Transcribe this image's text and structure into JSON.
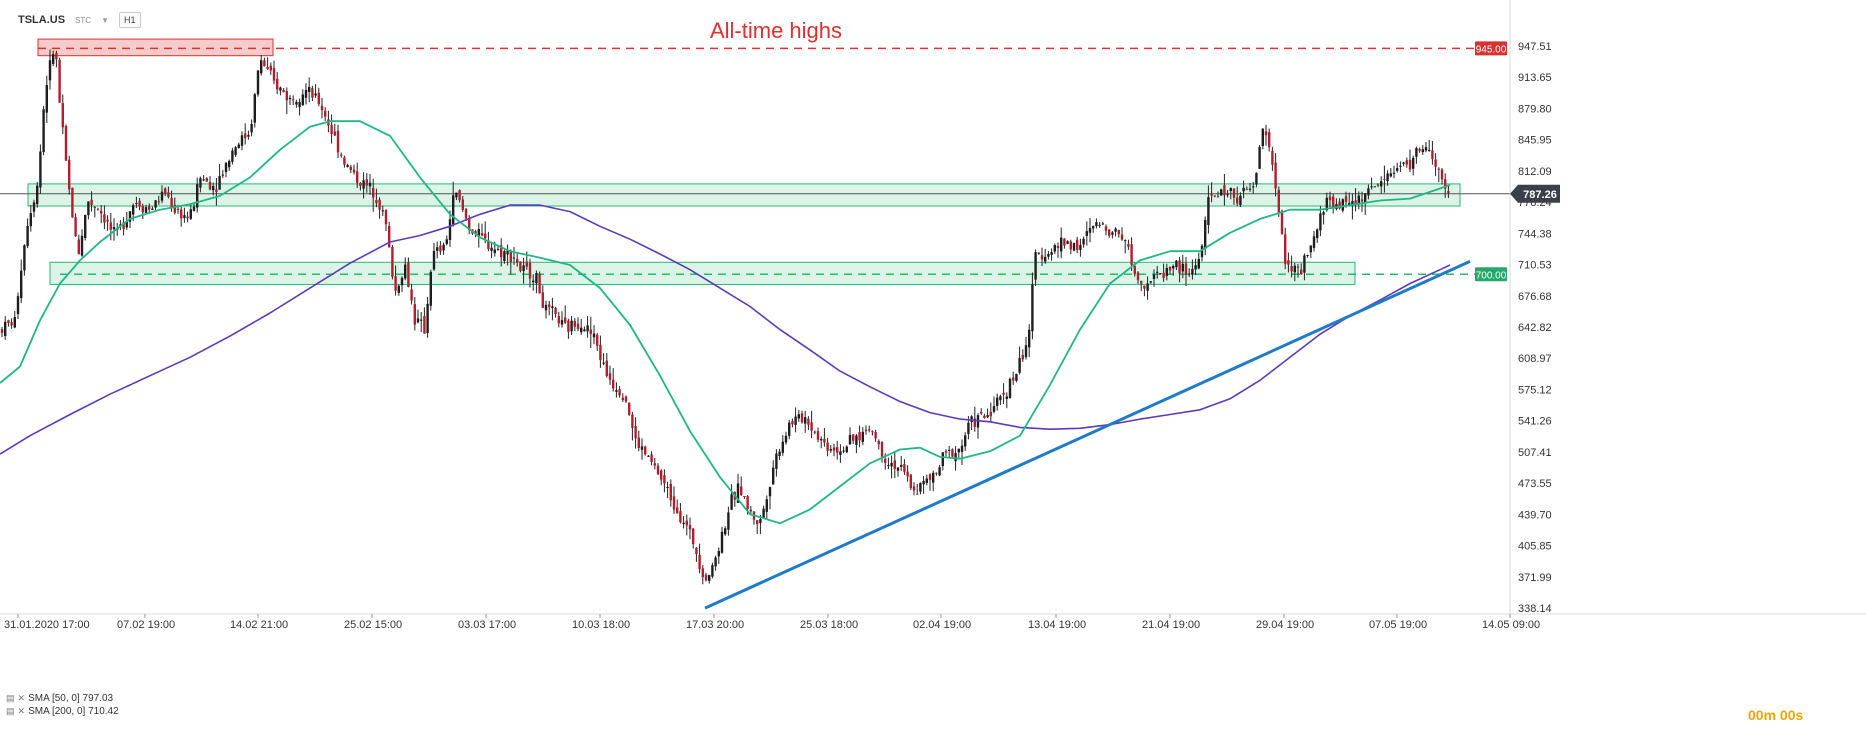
{
  "header": {
    "symbol": "TSLA.US",
    "chip": "STC",
    "timeframe": "H1"
  },
  "annotation": {
    "title": "All-time highs"
  },
  "price_labels": {
    "resistance": "945.00",
    "current": "787.26",
    "support": "700.00"
  },
  "legend": [
    {
      "label": "SMA  [50, 0]  797.03",
      "color": "#1fb885"
    },
    {
      "label": "SMA  [200, 0]  710.42",
      "color": "#5b3bbd"
    }
  ],
  "timer": "00m 00s",
  "colors": {
    "bull": "#1e1e1e",
    "bear": "#b11e2c",
    "sma50": "#1fb885",
    "sma200": "#5b3bbd",
    "trend": "#1f7bc9",
    "resistance": "#e03030",
    "support_zone": "#28b870"
  },
  "chart_data": {
    "type": "candlestick",
    "instrument": "TSLA.US",
    "interval": "H1",
    "ylim": [
      338.14,
      980
    ],
    "y_ticks": [
      "947.51",
      "913.65",
      "879.80",
      "845.95",
      "812.09",
      "778.24",
      "744.38",
      "710.53",
      "676.68",
      "642.82",
      "608.97",
      "575.12",
      "541.26",
      "507.41",
      "473.55",
      "439.70",
      "405.85",
      "371.99",
      "338.14"
    ],
    "x_ticks": [
      "31.01.2020  17:00",
      "07.02  19:00",
      "14.02  21:00",
      "25.02  15:00",
      "03.03  17:00",
      "10.03  18:00",
      "17.03  20:00",
      "25.03  18:00",
      "02.04  19:00",
      "13.04  19:00",
      "21.04  19:00",
      "29.04  19:00",
      "07.05  19:00",
      "14.05  09:00"
    ],
    "price_path": [
      [
        0,
        640
      ],
      [
        15,
        650
      ],
      [
        20,
        700
      ],
      [
        28,
        760
      ],
      [
        38,
        800
      ],
      [
        45,
        900
      ],
      [
        55,
        950
      ],
      [
        60,
        880
      ],
      [
        68,
        800
      ],
      [
        78,
        720
      ],
      [
        88,
        780
      ],
      [
        100,
        770
      ],
      [
        115,
        740
      ],
      [
        125,
        760
      ],
      [
        135,
        780
      ],
      [
        150,
        770
      ],
      [
        165,
        790
      ],
      [
        175,
        770
      ],
      [
        190,
        760
      ],
      [
        200,
        805
      ],
      [
        215,
        795
      ],
      [
        235,
        840
      ],
      [
        250,
        855
      ],
      [
        260,
        935
      ],
      [
        272,
        910
      ],
      [
        290,
        890
      ],
      [
        305,
        900
      ],
      [
        320,
        885
      ],
      [
        330,
        860
      ],
      [
        345,
        820
      ],
      [
        360,
        800
      ],
      [
        375,
        790
      ],
      [
        385,
        760
      ],
      [
        395,
        680
      ],
      [
        405,
        710
      ],
      [
        415,
        650
      ],
      [
        425,
        640
      ],
      [
        432,
        720
      ],
      [
        445,
        730
      ],
      [
        455,
        790
      ],
      [
        470,
        750
      ],
      [
        485,
        735
      ],
      [
        500,
        725
      ],
      [
        515,
        720
      ],
      [
        520,
        705
      ],
      [
        535,
        700
      ],
      [
        545,
        660
      ],
      [
        555,
        655
      ],
      [
        565,
        640
      ],
      [
        580,
        650
      ],
      [
        595,
        630
      ],
      [
        605,
        595
      ],
      [
        615,
        580
      ],
      [
        625,
        570
      ],
      [
        635,
        520
      ],
      [
        645,
        505
      ],
      [
        655,
        490
      ],
      [
        665,
        470
      ],
      [
        675,
        450
      ],
      [
        685,
        430
      ],
      [
        695,
        405
      ],
      [
        705,
        370
      ],
      [
        712,
        380
      ],
      [
        720,
        410
      ],
      [
        730,
        450
      ],
      [
        740,
        470
      ],
      [
        750,
        440
      ],
      [
        760,
        430
      ],
      [
        775,
        500
      ],
      [
        790,
        540
      ],
      [
        805,
        545
      ],
      [
        815,
        530
      ],
      [
        825,
        515
      ],
      [
        840,
        510
      ],
      [
        855,
        520
      ],
      [
        870,
        535
      ],
      [
        885,
        500
      ],
      [
        900,
        490
      ],
      [
        915,
        465
      ],
      [
        925,
        475
      ],
      [
        935,
        480
      ],
      [
        945,
        505
      ],
      [
        960,
        510
      ],
      [
        970,
        540
      ],
      [
        985,
        545
      ],
      [
        1000,
        565
      ],
      [
        1015,
        590
      ],
      [
        1025,
        620
      ],
      [
        1030,
        645
      ],
      [
        1035,
        720
      ],
      [
        1050,
        725
      ],
      [
        1065,
        735
      ],
      [
        1080,
        730
      ],
      [
        1095,
        755
      ],
      [
        1110,
        750
      ],
      [
        1125,
        740
      ],
      [
        1135,
        700
      ],
      [
        1145,
        690
      ],
      [
        1160,
        700
      ],
      [
        1175,
        710
      ],
      [
        1190,
        700
      ],
      [
        1200,
        720
      ],
      [
        1210,
        785
      ],
      [
        1225,
        790
      ],
      [
        1240,
        785
      ],
      [
        1255,
        795
      ],
      [
        1262,
        860
      ],
      [
        1270,
        840
      ],
      [
        1278,
        770
      ],
      [
        1285,
        720
      ],
      [
        1292,
        705
      ],
      [
        1300,
        700
      ],
      [
        1310,
        725
      ],
      [
        1318,
        750
      ],
      [
        1325,
        780
      ],
      [
        1340,
        775
      ],
      [
        1355,
        780
      ],
      [
        1370,
        790
      ],
      [
        1380,
        800
      ],
      [
        1395,
        815
      ],
      [
        1410,
        820
      ],
      [
        1420,
        838
      ],
      [
        1430,
        832
      ],
      [
        1438,
        810
      ],
      [
        1445,
        790
      ],
      [
        1450,
        785
      ]
    ],
    "sma50": [
      [
        0,
        582
      ],
      [
        20,
        600
      ],
      [
        40,
        650
      ],
      [
        60,
        690
      ],
      [
        80,
        715
      ],
      [
        100,
        735
      ],
      [
        130,
        760
      ],
      [
        160,
        770
      ],
      [
        190,
        776
      ],
      [
        220,
        785
      ],
      [
        250,
        805
      ],
      [
        280,
        835
      ],
      [
        310,
        860
      ],
      [
        330,
        866
      ],
      [
        360,
        866
      ],
      [
        390,
        850
      ],
      [
        420,
        805
      ],
      [
        450,
        765
      ],
      [
        480,
        740
      ],
      [
        510,
        725
      ],
      [
        540,
        718
      ],
      [
        570,
        710
      ],
      [
        600,
        685
      ],
      [
        630,
        645
      ],
      [
        660,
        590
      ],
      [
        690,
        530
      ],
      [
        720,
        480
      ],
      [
        750,
        440
      ],
      [
        780,
        430
      ],
      [
        810,
        445
      ],
      [
        840,
        470
      ],
      [
        870,
        495
      ],
      [
        900,
        510
      ],
      [
        920,
        512
      ],
      [
        940,
        502
      ],
      [
        960,
        500
      ],
      [
        990,
        508
      ],
      [
        1020,
        525
      ],
      [
        1050,
        580
      ],
      [
        1080,
        640
      ],
      [
        1110,
        690
      ],
      [
        1140,
        715
      ],
      [
        1170,
        725
      ],
      [
        1200,
        725
      ],
      [
        1230,
        745
      ],
      [
        1260,
        760
      ],
      [
        1290,
        770
      ],
      [
        1320,
        770
      ],
      [
        1350,
        775
      ],
      [
        1380,
        780
      ],
      [
        1410,
        782
      ],
      [
        1440,
        793
      ],
      [
        1450,
        797
      ]
    ],
    "sma200": [
      [
        0,
        505
      ],
      [
        30,
        525
      ],
      [
        70,
        548
      ],
      [
        110,
        570
      ],
      [
        150,
        590
      ],
      [
        190,
        610
      ],
      [
        230,
        633
      ],
      [
        270,
        658
      ],
      [
        310,
        685
      ],
      [
        350,
        712
      ],
      [
        390,
        735
      ],
      [
        420,
        742
      ],
      [
        450,
        752
      ],
      [
        480,
        765
      ],
      [
        510,
        775
      ],
      [
        540,
        775
      ],
      [
        570,
        768
      ],
      [
        600,
        752
      ],
      [
        630,
        738
      ],
      [
        660,
        722
      ],
      [
        690,
        705
      ],
      [
        720,
        685
      ],
      [
        750,
        665
      ],
      [
        780,
        640
      ],
      [
        810,
        618
      ],
      [
        840,
        595
      ],
      [
        870,
        578
      ],
      [
        900,
        562
      ],
      [
        930,
        550
      ],
      [
        960,
        543
      ],
      [
        990,
        540
      ],
      [
        1020,
        534
      ],
      [
        1050,
        532
      ],
      [
        1080,
        533
      ],
      [
        1110,
        537
      ],
      [
        1140,
        543
      ],
      [
        1170,
        548
      ],
      [
        1200,
        553
      ],
      [
        1230,
        565
      ],
      [
        1260,
        585
      ],
      [
        1290,
        610
      ],
      [
        1320,
        635
      ],
      [
        1350,
        655
      ],
      [
        1380,
        672
      ],
      [
        1410,
        690
      ],
      [
        1440,
        705
      ],
      [
        1450,
        710
      ]
    ],
    "trendline": [
      [
        705,
        338
      ],
      [
        1470,
        714
      ]
    ],
    "resistance_level": 945.0,
    "support_level": 700.0,
    "resistance_zone": {
      "x": [
        38,
        273
      ],
      "y": [
        937,
        955
      ]
    },
    "zones": [
      {
        "x": [
          28,
          1460
        ],
        "y": [
          774,
          798
        ]
      },
      {
        "x": [
          50,
          1355
        ],
        "y": [
          689,
          713
        ]
      }
    ]
  }
}
